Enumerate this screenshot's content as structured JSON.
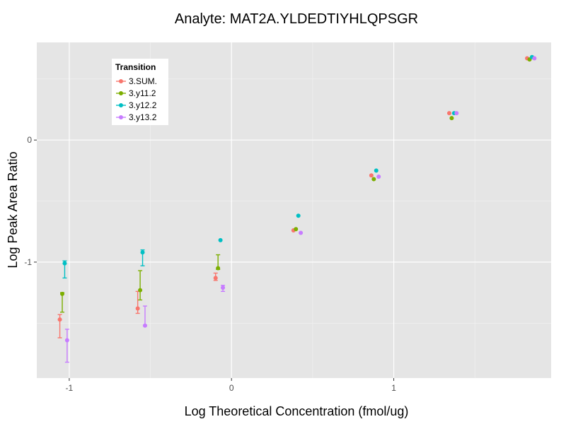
{
  "chart_data": {
    "type": "scatter",
    "title": "Analyte: MAT2A.YLDEDTIYHLQPSGR",
    "xlabel": "Log Theoretical Concentration (fmol/ug)",
    "ylabel": "Log Peak Area Ratio",
    "xlim": [
      -1.2,
      1.97
    ],
    "ylim": [
      -1.95,
      0.8
    ],
    "x_ticks": [
      -1,
      0,
      1
    ],
    "x_tick_labels": [
      "-1",
      "0",
      "1"
    ],
    "y_ticks": [
      -1,
      0
    ],
    "y_tick_labels": [
      "-1",
      "0"
    ],
    "legend": {
      "title": "Transition",
      "position": "top-left"
    },
    "series": [
      {
        "name": "3.SUM.",
        "color": "#F8766D",
        "points": [
          {
            "x": -1.058,
            "y": -1.47,
            "lo": -1.62,
            "hi": -1.43
          },
          {
            "x": -0.578,
            "y": -1.38,
            "lo": -1.42,
            "hi": -1.24
          },
          {
            "x": -0.098,
            "y": -1.13,
            "lo": -1.15,
            "hi": -1.09
          },
          {
            "x": 0.382,
            "y": -0.74,
            "lo": null,
            "hi": null
          },
          {
            "x": 0.862,
            "y": -0.29,
            "lo": null,
            "hi": null
          },
          {
            "x": 1.342,
            "y": 0.22,
            "lo": null,
            "hi": null
          },
          {
            "x": 1.822,
            "y": 0.67,
            "lo": null,
            "hi": null
          }
        ]
      },
      {
        "name": "3.y11.2",
        "color": "#7CAE00",
        "points": [
          {
            "x": -1.043,
            "y": -1.26,
            "lo": -1.41,
            "hi": -1.25
          },
          {
            "x": -0.563,
            "y": -1.23,
            "lo": -1.31,
            "hi": -1.07
          },
          {
            "x": -0.083,
            "y": -1.05,
            "lo": -1.06,
            "hi": -0.94
          },
          {
            "x": 0.397,
            "y": -0.73,
            "lo": null,
            "hi": null
          },
          {
            "x": 0.877,
            "y": -0.32,
            "lo": null,
            "hi": null
          },
          {
            "x": 1.357,
            "y": 0.18,
            "lo": null,
            "hi": null
          },
          {
            "x": 1.837,
            "y": 0.66,
            "lo": null,
            "hi": null
          }
        ]
      },
      {
        "name": "3.y12.2",
        "color": "#00BFC4",
        "points": [
          {
            "x": -1.028,
            "y": -1.01,
            "lo": -1.13,
            "hi": -0.99
          },
          {
            "x": -0.548,
            "y": -0.92,
            "lo": -1.03,
            "hi": -0.9
          },
          {
            "x": -0.068,
            "y": -0.82,
            "lo": null,
            "hi": null
          },
          {
            "x": 0.412,
            "y": -0.62,
            "lo": null,
            "hi": null
          },
          {
            "x": 0.892,
            "y": -0.25,
            "lo": null,
            "hi": null
          },
          {
            "x": 1.372,
            "y": 0.22,
            "lo": null,
            "hi": null
          },
          {
            "x": 1.852,
            "y": 0.68,
            "lo": null,
            "hi": null
          }
        ]
      },
      {
        "name": "3.y13.2",
        "color": "#C77CFF",
        "points": [
          {
            "x": -1.013,
            "y": -1.64,
            "lo": -1.82,
            "hi": -1.55
          },
          {
            "x": -0.533,
            "y": -1.52,
            "lo": -1.52,
            "hi": -1.36
          },
          {
            "x": -0.053,
            "y": -1.21,
            "lo": -1.24,
            "hi": -1.19
          },
          {
            "x": 0.427,
            "y": -0.76,
            "lo": null,
            "hi": null
          },
          {
            "x": 0.907,
            "y": -0.3,
            "lo": null,
            "hi": null
          },
          {
            "x": 1.387,
            "y": 0.22,
            "lo": null,
            "hi": null
          },
          {
            "x": 1.867,
            "y": 0.67,
            "lo": null,
            "hi": null
          }
        ]
      }
    ]
  }
}
